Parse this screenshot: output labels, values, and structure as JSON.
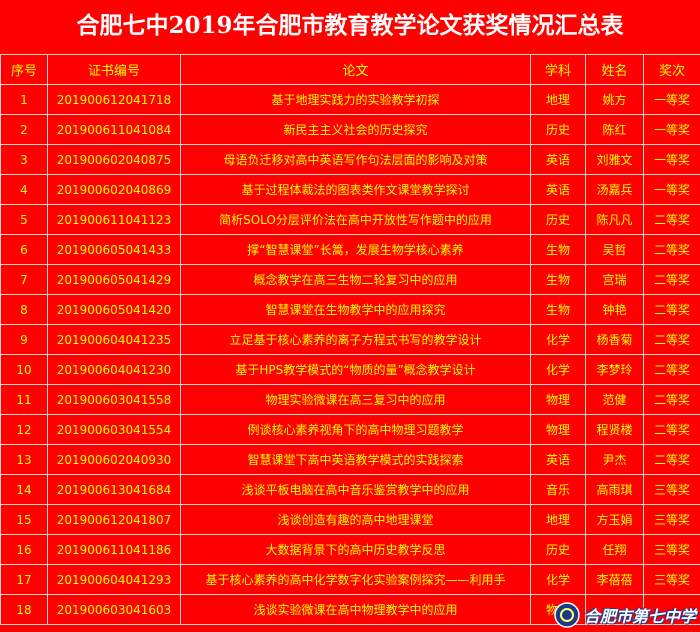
{
  "title": "合肥七中2019年合肥市教育教学论文获奖情况汇总表",
  "table": {
    "header": [
      "序号",
      "证书编号",
      "论文",
      "学科",
      "姓名",
      "奖次"
    ],
    "rows": [
      [
        "1",
        "201900612041718",
        "基于地理实践力的实验教学初探",
        "地理",
        "姚方",
        "一等奖"
      ],
      [
        "2",
        "201900611041084",
        "新民主主义社会的历史探究",
        "历史",
        "陈红",
        "一等奖"
      ],
      [
        "3",
        "201900602040875",
        "母语负迁移对高中英语写作句法层面的影响及对策",
        "英语",
        "刘雅文",
        "一等奖"
      ],
      [
        "4",
        "201900602040869",
        "基于过程体裁法的图表类作文课堂教学探讨",
        "英语",
        "汤嘉兵",
        "一等奖"
      ],
      [
        "5",
        "201900611041123",
        "简析SOLO分层评价法在高中开放性写作题中的应用",
        "历史",
        "陈凡凡",
        "二等奖"
      ],
      [
        "6",
        "201900605041433",
        "撑“智慧课堂”长篙，发展生物学核心素养",
        "生物",
        "吴哲",
        "二等奖"
      ],
      [
        "7",
        "201900605041429",
        "概念教学在高三生物二轮复习中的应用",
        "生物",
        "宫瑞",
        "二等奖"
      ],
      [
        "8",
        "201900605041420",
        "智慧课堂在生物教学中的应用探究",
        "生物",
        "钟艳",
        "二等奖"
      ],
      [
        "9",
        "201900604041235",
        "立足基于核心素养的离子方程式书写的教学设计",
        "化学",
        "杨香菊",
        "二等奖"
      ],
      [
        "10",
        "201900604041230",
        "基于HPS教学模式的“物质的量”概念教学设计",
        "化学",
        "李梦玲",
        "二等奖"
      ],
      [
        "11",
        "201900603041558",
        "物理实验微课在高三复习中的应用",
        "物理",
        "范健",
        "二等奖"
      ],
      [
        "12",
        "201900603041554",
        "例谈核心素养视角下的高中物理习题教学",
        "物理",
        "程贤楼",
        "二等奖"
      ],
      [
        "13",
        "201900602040930",
        "智慧课堂下高中英语教学模式的实践探索",
        "英语",
        "尹杰",
        "二等奖"
      ],
      [
        "14",
        "201900613041684",
        "浅谈平板电脑在高中音乐鉴赏教学中的应用",
        "音乐",
        "高雨琪",
        "三等奖"
      ],
      [
        "15",
        "201900612041807",
        "浅谈创造有趣的高中地理课堂",
        "地理",
        "方玉娟",
        "三等奖"
      ],
      [
        "16",
        "201900611041186",
        "大数据背景下的高中历史教学反思",
        "历史",
        "任翔",
        "三等奖"
      ],
      [
        "17",
        "201900604041293",
        "基于核心素养的高中化学数字化实验案例探究——利用手",
        "化学",
        "李蓓蓓",
        "三等奖"
      ],
      [
        "18",
        "201900603041603",
        "浅谈实验微课在高中物理教学中的应用",
        "物理"
      ]
    ]
  },
  "watermark": "合肥市第七中学"
}
